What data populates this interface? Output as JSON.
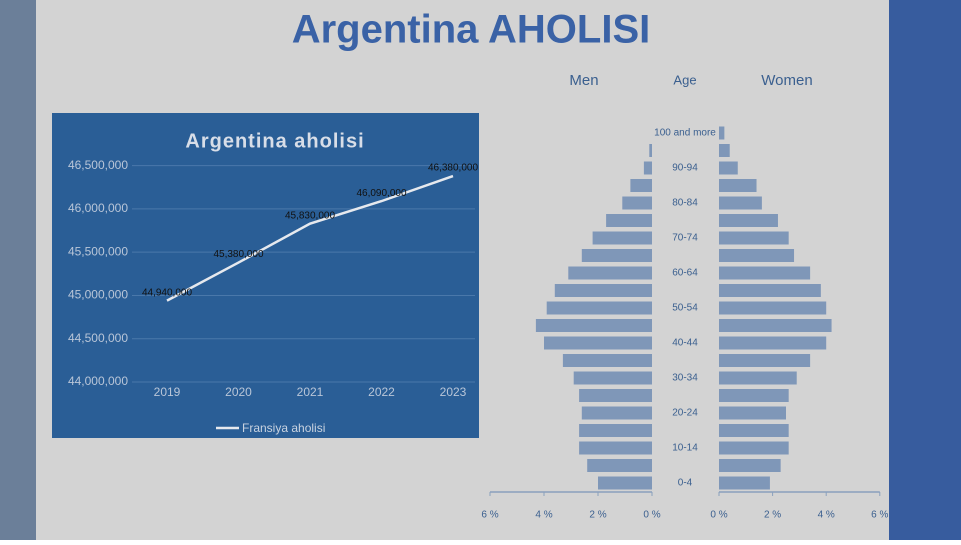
{
  "title": "Argentina AHOLISI",
  "chart_data": [
    {
      "type": "line",
      "title": "Argentina aholisi",
      "categories": [
        "2019",
        "2020",
        "2021",
        "2022",
        "2023"
      ],
      "series": [
        {
          "name": "Fransiya aholisi",
          "color": "#e6e9ee",
          "values": [
            44940000,
            45380000,
            45830000,
            46090000,
            46380000
          ],
          "value_labels": [
            "44,940,000",
            "45,380,000",
            "45,830,000",
            "46,090,000",
            "46,380,000"
          ]
        }
      ],
      "ylim": [
        44000000,
        46750000
      ],
      "yticks": [
        {
          "value": 44000000,
          "label": "44,000,000"
        },
        {
          "value": 44500000,
          "label": "44,500,000"
        },
        {
          "value": 45000000,
          "label": "45,000,000"
        },
        {
          "value": 45500000,
          "label": "45,500,000"
        },
        {
          "value": 46000000,
          "label": "46,000,000"
        },
        {
          "value": 46500000,
          "label": "46,500,000"
        }
      ],
      "grid": true,
      "legend": "bottom"
    },
    {
      "type": "pyramid",
      "y_label": "Age",
      "categories": [
        "0-4",
        null,
        "10-14",
        null,
        "20-24",
        null,
        "30-34",
        null,
        "40-44",
        null,
        "50-54",
        null,
        "60-64",
        null,
        "70-74",
        null,
        "80-84",
        null,
        "90-94",
        null,
        "100 and more"
      ],
      "series": [
        {
          "name": "Men",
          "color": "#7f97b8",
          "values": [
            2.0,
            2.4,
            2.7,
            2.7,
            2.6,
            2.7,
            2.9,
            3.3,
            4.0,
            4.3,
            3.9,
            3.6,
            3.1,
            2.6,
            2.2,
            1.7,
            1.1,
            0.8,
            0.3,
            0.1,
            0.0
          ]
        },
        {
          "name": "Women",
          "color": "#7f97b8",
          "values": [
            1.9,
            2.3,
            2.6,
            2.6,
            2.5,
            2.6,
            2.9,
            3.4,
            4.0,
            4.2,
            4.0,
            3.8,
            3.4,
            2.8,
            2.6,
            2.2,
            1.6,
            1.4,
            0.7,
            0.4,
            0.2
          ]
        }
      ],
      "xlim": [
        0,
        6
      ],
      "xticks": [
        {
          "value": 0,
          "label": "0 %"
        },
        {
          "value": 2,
          "label": "2 %"
        },
        {
          "value": 4,
          "label": "4 %"
        },
        {
          "value": 6,
          "label": "6 %"
        }
      ]
    }
  ]
}
